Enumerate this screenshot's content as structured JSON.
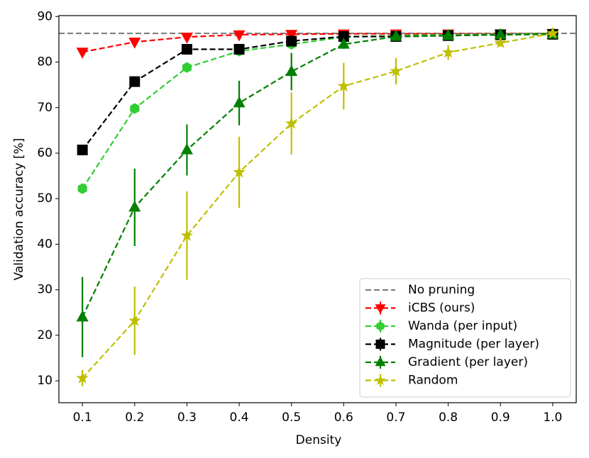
{
  "chart_data": {
    "type": "line",
    "xlabel": "Density",
    "ylabel": "Validation accuracy [%]",
    "x": [
      0.1,
      0.2,
      0.3,
      0.4,
      0.5,
      0.6,
      0.7,
      0.8,
      0.9,
      1.0
    ],
    "xlim": [
      0.055,
      1.045
    ],
    "xticks": [
      0.1,
      0.2,
      0.3,
      0.4,
      0.5,
      0.6,
      0.7,
      0.8,
      0.9,
      {
        "value": 1,
        "label": "1.0"
      }
    ],
    "ylim": [
      5.2,
      90.2
    ],
    "yticks": [
      10,
      20,
      30,
      40,
      50,
      60,
      70,
      80,
      90
    ],
    "legend": "lower right",
    "reference": {
      "name": "No pruning",
      "value": 86.3,
      "color": "#808080"
    },
    "series": [
      {
        "name": "iCBS (ours)",
        "color": "#ff0000",
        "marker": "triangle-down",
        "values": [
          82.2,
          84.4,
          85.5,
          86.0,
          86.1,
          86.2,
          86.2,
          86.2,
          86.2,
          86.3
        ],
        "errors": [
          0.3,
          0.3,
          0.3,
          0.2,
          0.2,
          0.2,
          0.2,
          0.1,
          0.1,
          0
        ]
      },
      {
        "name": "Wanda (per input)",
        "color": "#32cd32",
        "marker": "hexagon",
        "values": [
          52.2,
          69.8,
          78.8,
          82.4,
          83.9,
          85.5,
          85.8,
          86.0,
          86.1,
          86.3
        ],
        "errors": [
          0.6,
          0.5,
          0.4,
          0.3,
          0.3,
          0.2,
          0.2,
          0.1,
          0.1,
          0
        ]
      },
      {
        "name": "Magnitude (per layer)",
        "color": "#000000",
        "marker": "square",
        "values": [
          60.7,
          75.7,
          82.8,
          82.8,
          84.6,
          85.6,
          85.6,
          85.8,
          86.0,
          86.1
        ],
        "errors": [
          0.5,
          0.4,
          0.3,
          0.3,
          0.3,
          0.2,
          0.2,
          0.1,
          0.1,
          0
        ]
      },
      {
        "name": "Gradient (per layer)",
        "color": "#008000",
        "marker": "triangle-up",
        "values": [
          24.0,
          48.1,
          60.7,
          71.0,
          77.9,
          83.9,
          85.6,
          85.8,
          86.0,
          86.1
        ],
        "errors": [
          8.8,
          8.5,
          5.6,
          4.9,
          4.1,
          1.0,
          0.5,
          0.3,
          0.2,
          0
        ]
      },
      {
        "name": "Random",
        "color": "#bfbf00",
        "marker": "star",
        "values": [
          10.6,
          23.2,
          41.9,
          55.8,
          66.5,
          74.7,
          78.0,
          82.1,
          84.2,
          86.3
        ],
        "errors": [
          1.8,
          7.5,
          9.7,
          7.8,
          6.8,
          5.1,
          2.9,
          1.6,
          0.8,
          0
        ]
      }
    ]
  }
}
